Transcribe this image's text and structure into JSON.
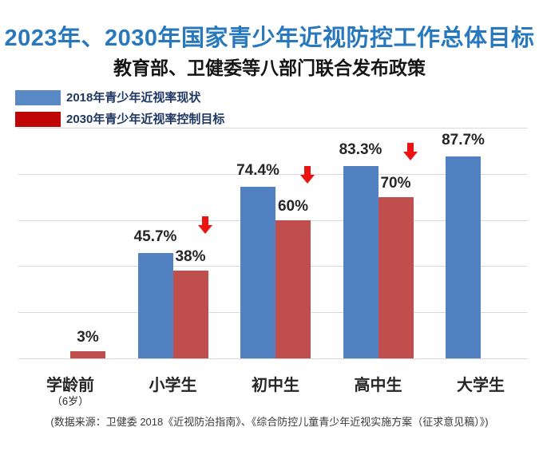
{
  "header": {
    "title": "2023年、2030年国家青少年近视防控工作总体目标",
    "subtitle": "教育部、卫健委等八部门联合发布政策"
  },
  "legend": [
    {
      "label": "2018年青少年近视率现状",
      "color": "#5a8ac6"
    },
    {
      "label": "2030年青少年近视率控制目标",
      "color": "#c00505"
    }
  ],
  "chart_data": {
    "type": "bar",
    "title": "2023年、2030年国家青少年近视防控工作总体目标",
    "subtitle": "教育部、卫健委等八部门联合发布政策",
    "categories": [
      "学龄前",
      "小学生",
      "初中生",
      "高中生",
      "大学生"
    ],
    "category_sublabels": [
      "（6岁）",
      "",
      "",
      "",
      ""
    ],
    "series": [
      {
        "name": "2018年青少年近视率现状",
        "color": "#5181c0",
        "values": [
          null,
          45.7,
          74.4,
          83.3,
          87.7
        ],
        "labels": [
          "",
          "45.7%",
          "74.4%",
          "83.3%",
          "87.7%"
        ]
      },
      {
        "name": "2030年青少年近视率控制目标",
        "color": "#bf4e4c",
        "values": [
          3,
          38,
          60,
          70,
          null
        ],
        "labels": [
          "3%",
          "38%",
          "60%",
          "70%",
          ""
        ]
      }
    ],
    "decrease_arrows": [
      false,
      true,
      true,
      true,
      false
    ],
    "ylim": [
      0,
      100
    ],
    "gridlines_pct": [
      0,
      20,
      40,
      60,
      80,
      100
    ],
    "grid": "horizontal",
    "legend_position": "top-left"
  },
  "footer": {
    "source": "(数据来源：卫健委 2018《近视防治指南》、《综合防控儿童青少年近视实施方案（征求意见稿）》)"
  },
  "colors": {
    "title_blue": "#2878be",
    "legend_text": "#1f3864",
    "bar_blue": "#5181c0",
    "bar_red": "#bf4e4c",
    "legend_red": "#c00505",
    "arrow_red": "#ee1111",
    "gridline": "#d9d9d9"
  }
}
